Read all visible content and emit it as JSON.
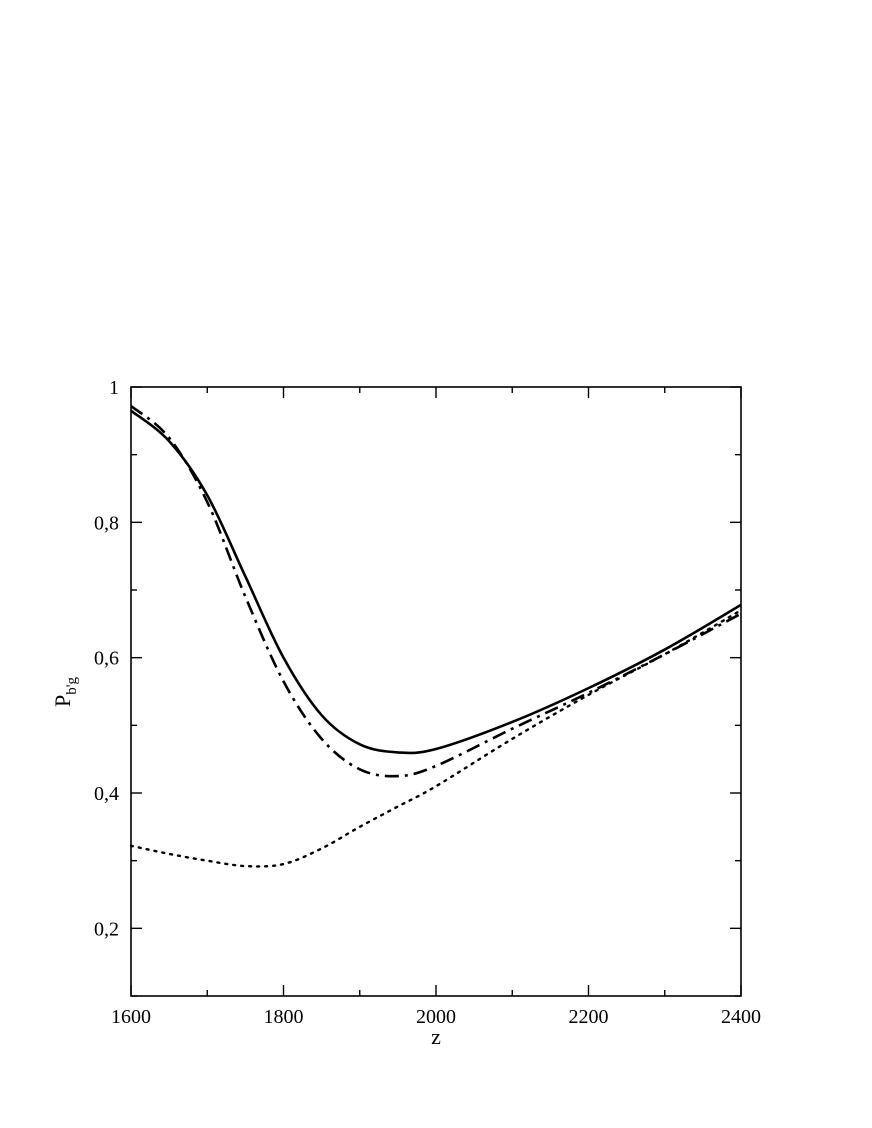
{
  "chart_data": {
    "type": "line",
    "xlabel": "z",
    "ylabel": {
      "main": "P",
      "sub": "b'g"
    },
    "xlim": [
      1600,
      2400
    ],
    "ylim": [
      0.1,
      1.0
    ],
    "xticks": [
      1600,
      1800,
      2000,
      2200,
      2400
    ],
    "xtick_labels": [
      "1600",
      "1800",
      "2000",
      "2200",
      "2400"
    ],
    "yticks": [
      0.2,
      0.4,
      0.6,
      0.8,
      1.0
    ],
    "ytick_labels": [
      "0,2",
      "0,4",
      "0,6",
      "0,8",
      "1"
    ],
    "grid": false,
    "legend": "none",
    "series": [
      {
        "style": "solid",
        "x": [
          1600,
          1650,
          1700,
          1750,
          1800,
          1850,
          1900,
          1950,
          2000,
          2100,
          2200,
          2300,
          2400
        ],
        "y": [
          0.965,
          0.92,
          0.84,
          0.72,
          0.6,
          0.515,
          0.472,
          0.46,
          0.465,
          0.505,
          0.555,
          0.612,
          0.678
        ]
      },
      {
        "style": "dashdot",
        "x": [
          1600,
          1650,
          1700,
          1750,
          1800,
          1850,
          1900,
          1950,
          2000,
          2100,
          2200,
          2300,
          2400
        ],
        "y": [
          0.972,
          0.925,
          0.83,
          0.69,
          0.565,
          0.48,
          0.435,
          0.425,
          0.44,
          0.495,
          0.548,
          0.605,
          0.665
        ]
      },
      {
        "style": "dotted",
        "x": [
          1600,
          1650,
          1700,
          1750,
          1800,
          1850,
          1900,
          1950,
          2000,
          2100,
          2200,
          2300,
          2400
        ],
        "y": [
          0.322,
          0.31,
          0.3,
          0.292,
          0.295,
          0.318,
          0.35,
          0.38,
          0.41,
          0.48,
          0.545,
          0.605,
          0.67
        ]
      }
    ]
  }
}
